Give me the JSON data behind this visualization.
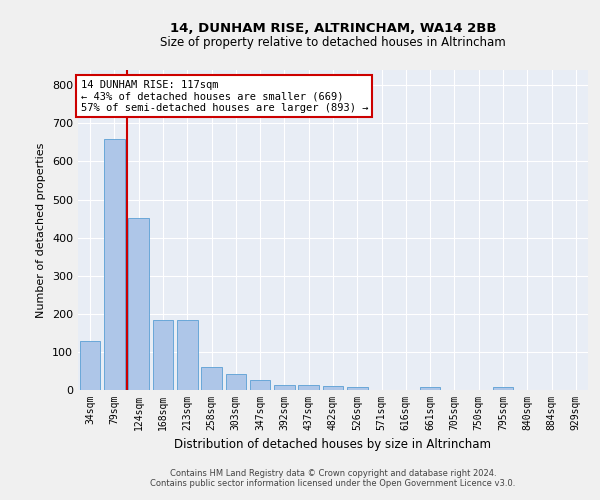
{
  "title1": "14, DUNHAM RISE, ALTRINCHAM, WA14 2BB",
  "title2": "Size of property relative to detached houses in Altrincham",
  "xlabel": "Distribution of detached houses by size in Altrincham",
  "ylabel": "Number of detached properties",
  "categories": [
    "34sqm",
    "79sqm",
    "124sqm",
    "168sqm",
    "213sqm",
    "258sqm",
    "303sqm",
    "347sqm",
    "392sqm",
    "437sqm",
    "482sqm",
    "526sqm",
    "571sqm",
    "616sqm",
    "661sqm",
    "705sqm",
    "750sqm",
    "795sqm",
    "840sqm",
    "884sqm",
    "929sqm"
  ],
  "values": [
    128,
    660,
    452,
    184,
    184,
    60,
    43,
    25,
    12,
    13,
    11,
    9,
    0,
    0,
    8,
    0,
    0,
    9,
    0,
    0,
    0
  ],
  "bar_color": "#aec6e8",
  "bar_edge_color": "#5a9fd4",
  "background_color": "#e8edf5",
  "grid_color": "#ffffff",
  "vline_x_index": 1,
  "vline_color": "#cc0000",
  "annotation_text": "14 DUNHAM RISE: 117sqm\n← 43% of detached houses are smaller (669)\n57% of semi-detached houses are larger (893) →",
  "annotation_box_color": "#ffffff",
  "annotation_box_edge": "#cc0000",
  "ylim": [
    0,
    840
  ],
  "yticks": [
    0,
    100,
    200,
    300,
    400,
    500,
    600,
    700,
    800
  ],
  "footer1": "Contains HM Land Registry data © Crown copyright and database right 2024.",
  "footer2": "Contains public sector information licensed under the Open Government Licence v3.0."
}
